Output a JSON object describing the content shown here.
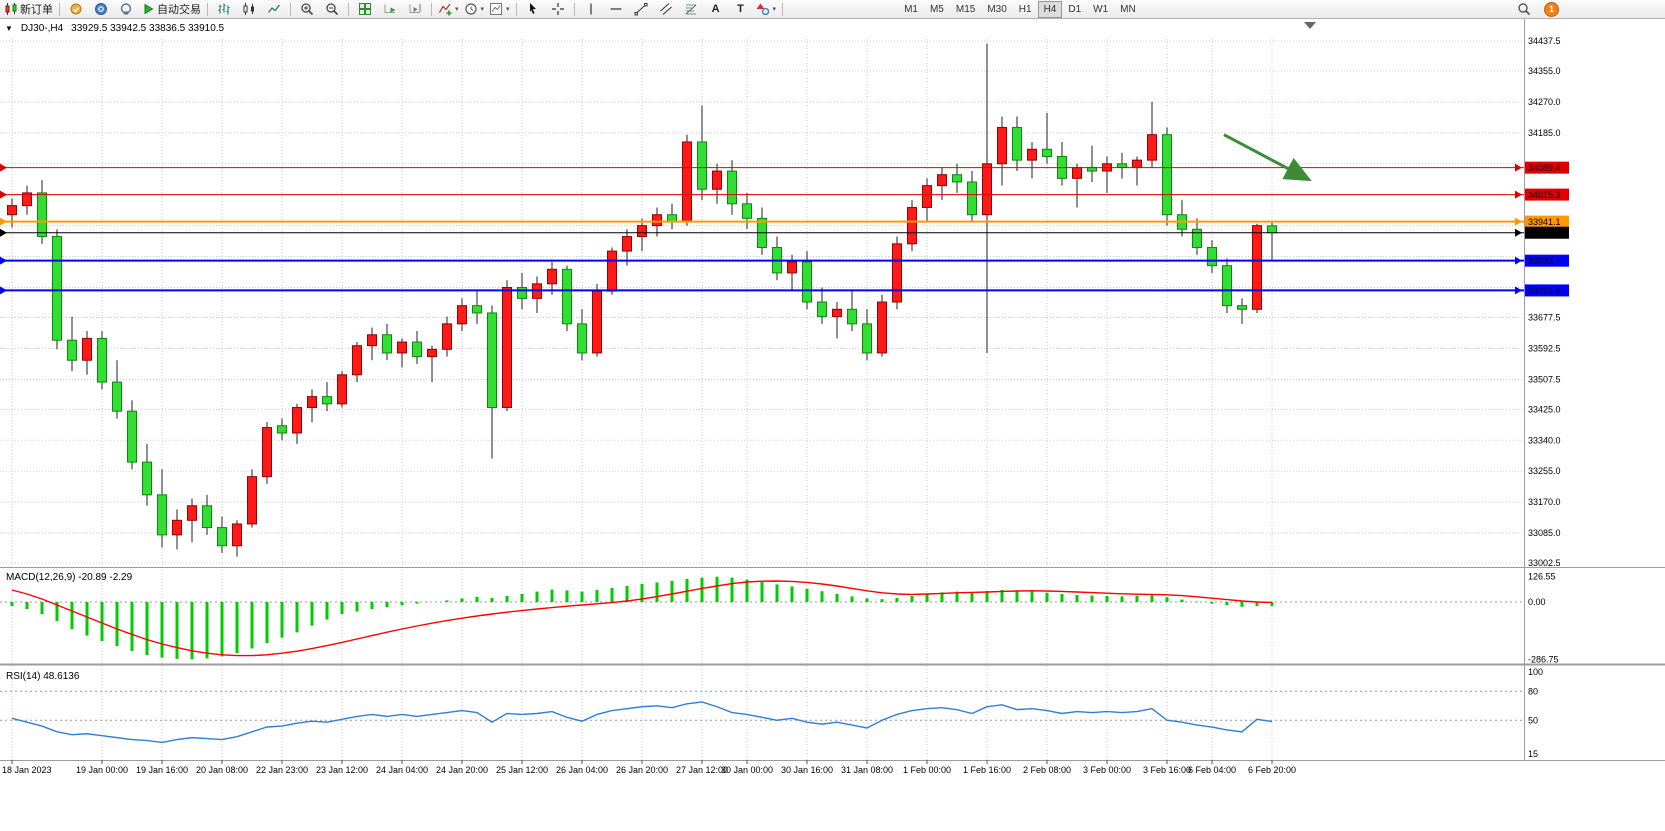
{
  "toolbar": {
    "new_order": "新订单",
    "autotrading": "自动交易",
    "text_tool": "A",
    "label_tool": "T",
    "timeframes": [
      "M1",
      "M5",
      "M15",
      "M30",
      "H1",
      "H4",
      "D1",
      "W1",
      "MN"
    ],
    "active_timeframe": "H4",
    "notification_count": "1"
  },
  "chart_header": {
    "symbol_period": "DJ30-,H4",
    "ohlc": "33929.5 33942.5 33836.5 33910.5"
  },
  "chart_data": {
    "type": "candlestick",
    "symbol": "DJ30-",
    "timeframe": "H4",
    "color_convention": "red=bullish, green=bearish",
    "current_ohlc": {
      "open": 33929.5,
      "high": 33942.5,
      "low": 33836.5,
      "close": 33910.5
    },
    "price_ticks": [
      34437.5,
      34355.0,
      34270.0,
      34185.0,
      34100.0,
      34015.0,
      33930.0,
      33845.0,
      33760.0,
      33677.5,
      33592.5,
      33507.5,
      33425.0,
      33340.0,
      33255.0,
      33170.0,
      33085.0,
      33002.5
    ],
    "time_ticks": [
      [
        0,
        "18 Jan 2023"
      ],
      [
        6,
        "19 Jan 00:00"
      ],
      [
        10,
        "19 Jan 16:00"
      ],
      [
        14,
        "20 Jan 08:00"
      ],
      [
        18,
        "22 Jan 23:00"
      ],
      [
        22,
        "23 Jan 12:00"
      ],
      [
        26,
        "24 Jan 04:00"
      ],
      [
        30,
        "24 Jan 20:00"
      ],
      [
        34,
        "25 Jan 12:00"
      ],
      [
        38,
        "26 Jan 04:00"
      ],
      [
        42,
        "26 Jan 20:00"
      ],
      [
        46,
        "27 Jan 12:00"
      ],
      [
        49,
        "30 Jan 00:00"
      ],
      [
        53,
        "30 Jan 16:00"
      ],
      [
        57,
        "31 Jan 08:00"
      ],
      [
        61,
        "1 Feb 00:00"
      ],
      [
        65,
        "1 Feb 16:00"
      ],
      [
        69,
        "2 Feb 08:00"
      ],
      [
        73,
        "3 Feb 00:00"
      ],
      [
        77,
        "3 Feb 16:00"
      ],
      [
        80,
        "6 Feb 04:00"
      ],
      [
        84,
        "6 Feb 20:00"
      ]
    ],
    "candles": [
      [
        33960,
        34005,
        33925,
        33985
      ],
      [
        33985,
        34040,
        33960,
        34020
      ],
      [
        34020,
        34055,
        33880,
        33900
      ],
      [
        33900,
        33920,
        33590,
        33615
      ],
      [
        33615,
        33680,
        33530,
        33560
      ],
      [
        33560,
        33640,
        33520,
        33620
      ],
      [
        33620,
        33640,
        33480,
        33500
      ],
      [
        33500,
        33560,
        33400,
        33420
      ],
      [
        33420,
        33450,
        33260,
        33280
      ],
      [
        33280,
        33330,
        33160,
        33190
      ],
      [
        33190,
        33260,
        33045,
        33080
      ],
      [
        33080,
        33150,
        33040,
        33120
      ],
      [
        33120,
        33180,
        33060,
        33160
      ],
      [
        33160,
        33190,
        33080,
        33100
      ],
      [
        33100,
        33130,
        33030,
        33050
      ],
      [
        33050,
        33120,
        33020,
        33110
      ],
      [
        33110,
        33260,
        33100,
        33240
      ],
      [
        33240,
        33390,
        33220,
        33375
      ],
      [
        33380,
        33400,
        33340,
        33360
      ],
      [
        33360,
        33440,
        33330,
        33430
      ],
      [
        33430,
        33480,
        33390,
        33460
      ],
      [
        33460,
        33500,
        33420,
        33440
      ],
      [
        33440,
        33530,
        33430,
        33520
      ],
      [
        33520,
        33610,
        33500,
        33600
      ],
      [
        33600,
        33650,
        33560,
        33630
      ],
      [
        33630,
        33660,
        33560,
        33580
      ],
      [
        33580,
        33620,
        33540,
        33610
      ],
      [
        33610,
        33640,
        33550,
        33570
      ],
      [
        33570,
        33600,
        33500,
        33590
      ],
      [
        33590,
        33680,
        33570,
        33660
      ],
      [
        33660,
        33730,
        33640,
        33710
      ],
      [
        33710,
        33750,
        33660,
        33690
      ],
      [
        33690,
        33710,
        33290,
        33430
      ],
      [
        33430,
        33780,
        33420,
        33760
      ],
      [
        33760,
        33800,
        33700,
        33730
      ],
      [
        33730,
        33790,
        33690,
        33770
      ],
      [
        33770,
        33830,
        33740,
        33810
      ],
      [
        33810,
        33820,
        33640,
        33660
      ],
      [
        33660,
        33700,
        33560,
        33580
      ],
      [
        33580,
        33770,
        33570,
        33750
      ],
      [
        33750,
        33870,
        33740,
        33860
      ],
      [
        33860,
        33920,
        33820,
        33900
      ],
      [
        33900,
        33950,
        33860,
        33930
      ],
      [
        33930,
        33980,
        33900,
        33960
      ],
      [
        33960,
        33990,
        33920,
        33940
      ],
      [
        33940,
        34180,
        33930,
        34160
      ],
      [
        34160,
        34260,
        34000,
        34030
      ],
      [
        34030,
        34100,
        33990,
        34080
      ],
      [
        34080,
        34110,
        33960,
        33990
      ],
      [
        33990,
        34020,
        33920,
        33950
      ],
      [
        33950,
        33980,
        33850,
        33870
      ],
      [
        33870,
        33900,
        33780,
        33800
      ],
      [
        33800,
        33850,
        33750,
        33830
      ],
      [
        33830,
        33860,
        33700,
        33720
      ],
      [
        33720,
        33760,
        33660,
        33680
      ],
      [
        33680,
        33720,
        33620,
        33700
      ],
      [
        33700,
        33750,
        33640,
        33660
      ],
      [
        33660,
        33700,
        33560,
        33580
      ],
      [
        33580,
        33740,
        33570,
        33720
      ],
      [
        33720,
        33900,
        33700,
        33880
      ],
      [
        33880,
        34000,
        33860,
        33980
      ],
      [
        33980,
        34060,
        33940,
        34040
      ],
      [
        34040,
        34090,
        34000,
        34070
      ],
      [
        34070,
        34100,
        34020,
        34050
      ],
      [
        34050,
        34080,
        33940,
        33960
      ],
      [
        33960,
        34430,
        33580,
        34100
      ],
      [
        34100,
        34230,
        34040,
        34200
      ],
      [
        34200,
        34230,
        34080,
        34110
      ],
      [
        34110,
        34160,
        34060,
        34140
      ],
      [
        34140,
        34240,
        34100,
        34120
      ],
      [
        34120,
        34160,
        34040,
        34060
      ],
      [
        34060,
        34100,
        33980,
        34090
      ],
      [
        34090,
        34150,
        34050,
        34080
      ],
      [
        34080,
        34120,
        34020,
        34100
      ],
      [
        34100,
        34130,
        34060,
        34090
      ],
      [
        34090,
        34120,
        34040,
        34110
      ],
      [
        34110,
        34270,
        34090,
        34180
      ],
      [
        34180,
        34200,
        33930,
        33960
      ],
      [
        33960,
        34000,
        33900,
        33920
      ],
      [
        33920,
        33950,
        33850,
        33870
      ],
      [
        33870,
        33890,
        33800,
        33820
      ],
      [
        33820,
        33840,
        33690,
        33710
      ],
      [
        33710,
        33730,
        33660,
        33700
      ],
      [
        33700,
        33935,
        33690,
        33930
      ],
      [
        33929.5,
        33942.5,
        33836.5,
        33910.5
      ]
    ],
    "hlines": [
      {
        "price": 34089.4,
        "color": "#e00000",
        "width": 1
      },
      {
        "price": 34015.3,
        "color": "#e00000",
        "width": 1
      },
      {
        "price": 33941.1,
        "color": "#ff9900",
        "width": 2
      },
      {
        "price": 33910.5,
        "color": "#000000",
        "width": 1
      },
      {
        "price": 33833.7,
        "color": "#0000ff",
        "width": 2
      },
      {
        "price": 33751.9,
        "color": "#0000ff",
        "width": 2
      }
    ],
    "arrow": {
      "from_index": 80.8,
      "from_price": 34180,
      "to_index": 86.3,
      "to_price": 34060,
      "color": "#3d8b37"
    },
    "macd": {
      "name": "MACD(12,26,9)",
      "values": "-20.89 -2.29",
      "ticks": [
        {
          "value": 126.55,
          "label": "126.55"
        },
        {
          "value": 0,
          "label": "0.00"
        },
        {
          "value": -286.75,
          "label": "-286.75"
        }
      ],
      "hist": [
        -20,
        -35,
        -60,
        -95,
        -135,
        -168,
        -195,
        -220,
        -245,
        -265,
        -278,
        -284,
        -286.75,
        -282,
        -272,
        -255,
        -232,
        -205,
        -178,
        -152,
        -118,
        -88,
        -60,
        -48,
        -36,
        -26,
        -16,
        -8,
        0,
        8,
        18,
        26,
        20,
        30,
        40,
        52,
        62,
        58,
        52,
        60,
        70,
        80,
        90,
        98,
        106,
        115,
        122,
        126.55,
        122,
        112,
        100,
        88,
        78,
        66,
        54,
        40,
        28,
        18,
        14,
        20,
        30,
        40,
        48,
        52,
        48,
        55,
        60,
        58,
        52,
        46,
        40,
        35,
        32,
        30,
        28,
        32,
        38,
        24,
        12,
        2,
        -8,
        -16,
        -24,
        -20,
        -20.89
      ],
      "signal": [
        60,
        40,
        15,
        -15,
        -45,
        -75,
        -105,
        -135,
        -162,
        -188,
        -210,
        -228,
        -244,
        -256,
        -264,
        -268,
        -268,
        -264,
        -256,
        -246,
        -233,
        -218,
        -202,
        -185,
        -168,
        -151,
        -135,
        -120,
        -106,
        -93,
        -81,
        -70,
        -60,
        -51,
        -43,
        -35,
        -28,
        -21,
        -15,
        -9,
        -3,
        5,
        15,
        27,
        40,
        54,
        68,
        80,
        92,
        100,
        104,
        105,
        103,
        98,
        90,
        80,
        68,
        56,
        46,
        40,
        38,
        40,
        43,
        46,
        48,
        50,
        53,
        55,
        56,
        55,
        53,
        50,
        47,
        44,
        41,
        39,
        38,
        36,
        32,
        26,
        19,
        12,
        5,
        0,
        -2.29
      ]
    },
    "rsi": {
      "name": "RSI(14)",
      "value": "48.6136",
      "ticks": [
        {
          "value": 100,
          "label": "100"
        },
        {
          "value": 80,
          "label": "80"
        },
        {
          "value": 50,
          "label": "50"
        },
        {
          "value": 15,
          "label": "15"
        }
      ],
      "levels": [
        80,
        50
      ],
      "series": [
        52,
        48,
        44,
        38,
        35,
        36,
        34,
        32,
        30,
        29,
        27,
        30,
        32,
        31,
        30,
        33,
        38,
        43,
        44,
        47,
        49,
        48,
        51,
        54,
        56,
        54,
        56,
        54,
        56,
        58,
        60,
        58,
        48,
        57,
        56,
        57,
        59,
        53,
        49,
        56,
        60,
        62,
        64,
        65,
        63,
        67,
        69,
        64,
        58,
        56,
        53,
        50,
        52,
        48,
        46,
        48,
        45,
        42,
        50,
        56,
        60,
        62,
        63,
        61,
        57,
        64,
        66,
        61,
        62,
        60,
        57,
        59,
        58,
        59,
        58,
        59,
        62,
        50,
        48,
        45,
        43,
        40,
        38,
        51,
        48.61
      ]
    }
  }
}
